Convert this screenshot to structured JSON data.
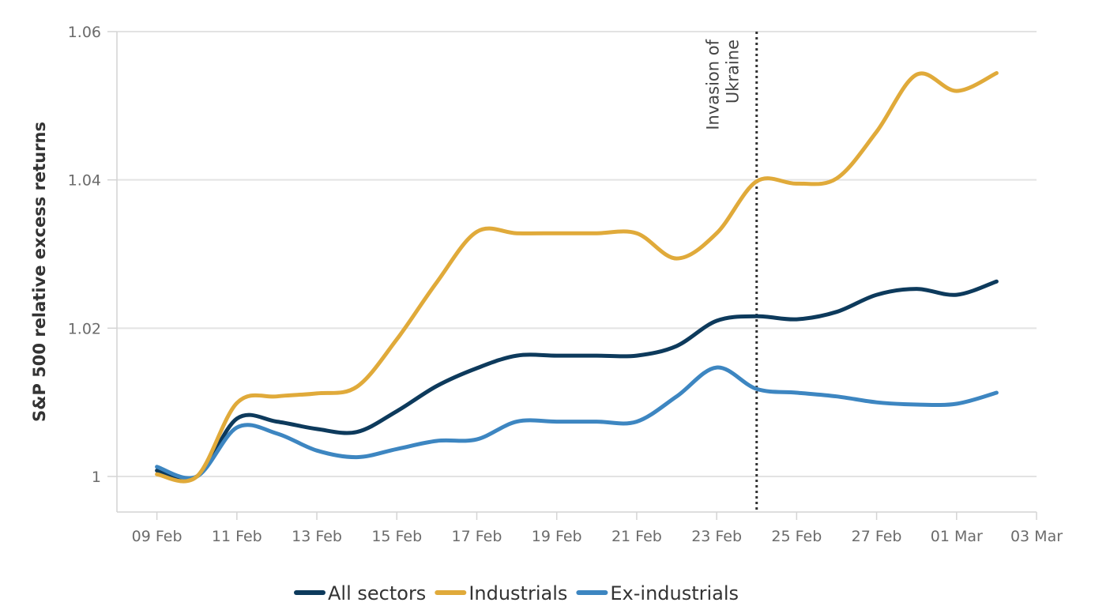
{
  "chart_data": {
    "type": "line",
    "title": "",
    "xlabel": "",
    "ylabel": "S&P 500 relative excess returns",
    "ylim": [
      0.995,
      1.06
    ],
    "y_ticks": [
      1,
      1.02,
      1.04,
      1.06
    ],
    "y_tick_labels": [
      "1",
      "1.02",
      "1.04",
      "1.06"
    ],
    "x_ticks": [
      0,
      2,
      4,
      6,
      8,
      10,
      12,
      14,
      16,
      18,
      20,
      22
    ],
    "x_tick_labels": [
      "09 Feb",
      "11 Feb",
      "13 Feb",
      "15 Feb",
      "17 Feb",
      "19 Feb",
      "21 Feb",
      "23 Feb",
      "25 Feb",
      "27 Feb",
      "01 Mar",
      "03 Mar"
    ],
    "xlim": [
      -1,
      22
    ],
    "x_unit": "days since 09 Feb",
    "x": [
      0,
      1,
      2,
      3,
      4,
      5,
      6,
      7,
      8,
      9,
      10,
      11,
      12,
      13,
      14,
      15,
      16,
      17,
      18,
      19,
      20,
      21
    ],
    "series": [
      {
        "name": "All sectors",
        "color": "#0d3a5c",
        "values": [
          1.0008,
          1.0,
          1.0078,
          1.0074,
          1.0064,
          1.006,
          1.0088,
          1.0122,
          1.0146,
          1.0163,
          1.0163,
          1.0163,
          1.0163,
          1.0176,
          1.021,
          1.0216,
          1.0212,
          1.0222,
          1.0245,
          1.0253,
          1.0245,
          1.0263
        ]
      },
      {
        "name": "Industrials",
        "color": "#e0aa3a",
        "values": [
          1.0003,
          1.0,
          1.0099,
          1.0108,
          1.0112,
          1.0121,
          1.0185,
          1.0262,
          1.033,
          1.0328,
          1.0328,
          1.0328,
          1.0328,
          1.0294,
          1.0328,
          1.0398,
          1.0395,
          1.0402,
          1.0465,
          1.0542,
          1.052,
          1.0544
        ]
      },
      {
        "name": "Ex-industrials",
        "color": "#3d86c1",
        "values": [
          1.0013,
          1.0,
          1.0066,
          1.0058,
          1.0035,
          1.0026,
          1.0037,
          1.0048,
          1.005,
          1.0074,
          1.0074,
          1.0074,
          1.0074,
          1.0108,
          1.0147,
          1.0118,
          1.0113,
          1.0108,
          1.01,
          1.0097,
          1.0098,
          1.0113
        ]
      }
    ],
    "annotations": [
      {
        "x": 15,
        "style": "dotted-vertical",
        "text_lines": [
          "Invasion of",
          "Ukraine"
        ]
      }
    ],
    "legend": {
      "position": "bottom-center"
    },
    "grid": {
      "horizontal": true,
      "vertical": false
    }
  }
}
